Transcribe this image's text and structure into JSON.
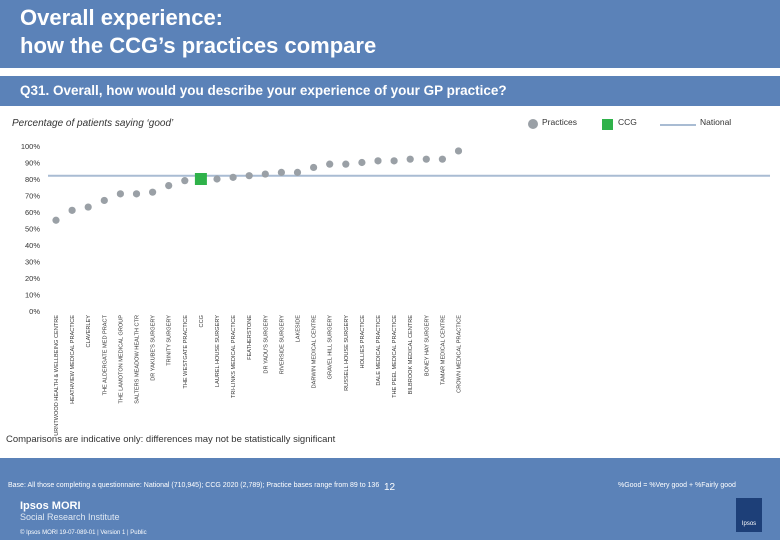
{
  "header": {
    "title": "Overall experience:\nhow the CCG’s practices compare",
    "question": "Q31. Overall, how would you describe your experience of your GP practice?"
  },
  "subtitle": "Percentage of patients saying ‘good’",
  "legend": {
    "practices": "Practices",
    "ccg": "CCG",
    "national": "National"
  },
  "colors": {
    "brand": "#5b82b8",
    "practice": "#9aa0a6",
    "ccg": "#2fb24a",
    "national": "#a9bcd3"
  },
  "chart_data": {
    "type": "scatter",
    "ylabel": "Percentage of patients saying ‘good’",
    "ylim": [
      0,
      100
    ],
    "yticks": [
      "0%",
      "10%",
      "20%",
      "30%",
      "40%",
      "50%",
      "60%",
      "70%",
      "80%",
      "90%",
      "100%"
    ],
    "national": 82,
    "categories": [
      "BURNTWOOD HEALTH & WELLBEING CENTRE",
      "HEATHVIEW MEDICAL PRACTICE",
      "CLAVERLEY",
      "THE ALDERGATE MED PRACT",
      "THE LAMOTON MEDICAL GROUP",
      "SALTERS MEADOW HEALTH CTR",
      "DR YAKUBE'S SURGERY",
      "TRINITY SURGERY",
      "THE WESTGATE PRACTICE",
      "CCG",
      "LAUREL HOUSE SURGERY",
      "TRI-LINKS MEDICAL PRACTICE",
      "FEATHERSTONE",
      "DR YADU'S SURGERY",
      "RIVERSIDE SURGERY",
      "LAKESIDE",
      "DARWIN MEDICAL CENTRE",
      "GRAVEL HILL SURGERY",
      "RUSSELL HOUSE SURGERY",
      "HOLLIES PRACTICE",
      "DALE MEDICAL PRACTICE",
      "THE PEEL MEDICAL PRACTICE",
      "BILBROOK MEDICAL CENTRE",
      "BONEY HAY SURGERY",
      "TAMAR MEDICAL CENTRE",
      "CROWN MEDICAL PRACTICE"
    ],
    "values": [
      55,
      61,
      63,
      67,
      71,
      71,
      72,
      76,
      79,
      80,
      80,
      81,
      82,
      83,
      84,
      84,
      87,
      89,
      89,
      90,
      91,
      91,
      92,
      92,
      92,
      97
    ],
    "ccg_index": 9
  },
  "footer": {
    "note": "Comparisons are indicative only: differences may not be statistically significant",
    "base": "Base: All those completing a questionnaire: National (710,945); CCG 2020 (2,789); Practice bases range from 89 to 136",
    "metric": "%Good = %Very good + %Fairly good",
    "page": "12",
    "brand": "Ipsos MORI",
    "institute": "Social Research Institute",
    "credit": "© Ipsos MORI     19-07-089-01 | Version 1 | Public",
    "logo": "Ipsos"
  }
}
